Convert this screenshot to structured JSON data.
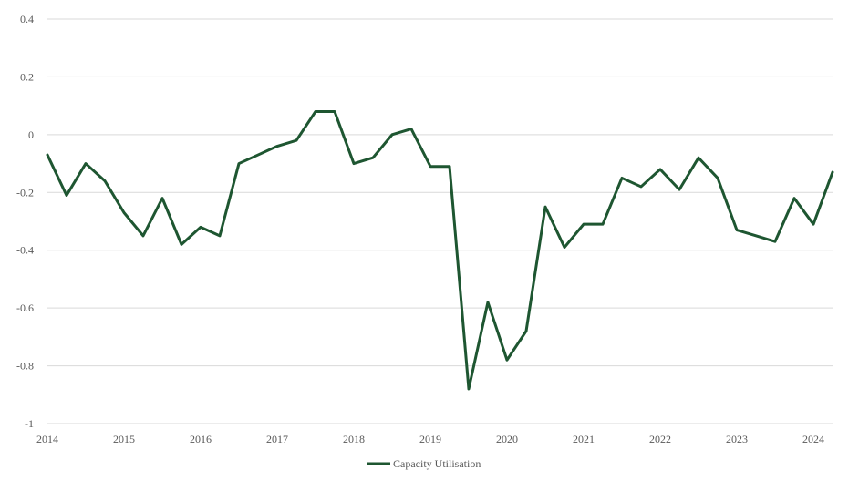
{
  "chart_data": {
    "type": "line",
    "title": "",
    "xlabel": "",
    "ylabel": "",
    "ylim": [
      -1,
      0.4
    ],
    "yticks": [
      0.4,
      0.2,
      0,
      -0.2,
      -0.4,
      -0.6,
      -0.8,
      -1
    ],
    "ytick_labels": [
      "0.4",
      "0.2",
      "0",
      "-0.2",
      "-0.4",
      "-0.6",
      "-0.8",
      "-1"
    ],
    "xlim": [
      2014,
      2024.25
    ],
    "xticks": [
      2014,
      2015,
      2016,
      2017,
      2018,
      2019,
      2020,
      2021,
      2022,
      2023,
      2024
    ],
    "xtick_labels": [
      "2014",
      "2015",
      "2016",
      "2017",
      "2018",
      "2019",
      "2020",
      "2021",
      "2022",
      "2023",
      "2024"
    ],
    "grid": true,
    "legend_position": "bottom-center",
    "series": [
      {
        "name": "Capacity Utilisation",
        "color": "#1e5631",
        "x": [
          2014,
          2014.25,
          2014.5,
          2014.75,
          2015,
          2015.25,
          2015.5,
          2015.75,
          2016,
          2016.25,
          2016.5,
          2016.75,
          2017,
          2017.25,
          2017.5,
          2017.75,
          2018,
          2018.25,
          2018.5,
          2018.75,
          2019,
          2019.25,
          2019.5,
          2019.75,
          2020,
          2020.25,
          2020.5,
          2020.75,
          2021,
          2021.25,
          2021.5,
          2021.75,
          2022,
          2022.25,
          2022.5,
          2022.75,
          2023,
          2023.25,
          2023.5,
          2023.75,
          2024,
          2024.25
        ],
        "values": [
          -0.07,
          -0.21,
          -0.1,
          -0.16,
          -0.27,
          -0.35,
          -0.22,
          -0.38,
          -0.32,
          -0.35,
          -0.1,
          -0.07,
          -0.04,
          -0.02,
          0.08,
          0.08,
          -0.1,
          -0.08,
          0.0,
          0.02,
          -0.11,
          -0.11,
          -0.88,
          -0.58,
          -0.78,
          -0.68,
          -0.25,
          -0.39,
          -0.31,
          -0.31,
          -0.15,
          -0.18,
          -0.12,
          -0.19,
          -0.08,
          -0.15,
          -0.33,
          -0.35,
          -0.37,
          -0.22,
          -0.31,
          -0.13
        ]
      }
    ]
  }
}
